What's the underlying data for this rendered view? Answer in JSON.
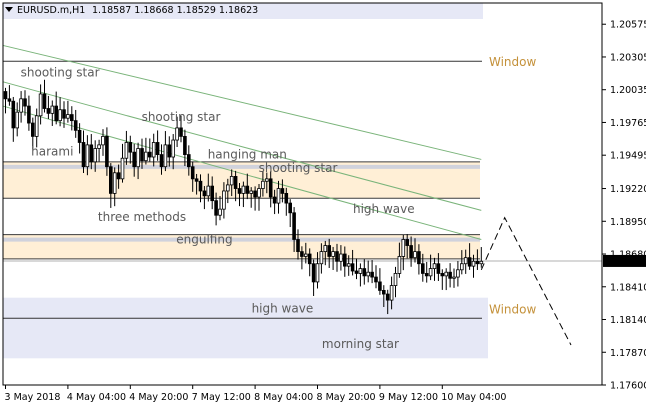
{
  "header": {
    "symbol": "EURUSD.m,H1",
    "ohlc": "1.18587 1.18668 1.18529 1.18623"
  },
  "colors": {
    "up": "#ffffff",
    "down": "#000000",
    "zone_fill": "#ffefd6",
    "window_fill": "#e6e8f6",
    "ma_green": "#7ab47a",
    "price_tag_bg": "#000000",
    "window_text": "#c4913a"
  },
  "chart_data": {
    "type": "candlestick",
    "symbol": "EURUSD.m",
    "timeframe": "H1",
    "ylim": [
      1.176,
      1.2075
    ],
    "y_ticks": [
      "1.20575",
      "1.20305",
      "1.20035",
      "1.19765",
      "1.19495",
      "1.19220",
      "1.18950",
      "1.18680",
      "1.18410",
      "1.18140",
      "1.17870",
      "1.17600"
    ],
    "y_tick_values": [
      1.20575,
      1.20305,
      1.20035,
      1.19765,
      1.19495,
      1.1922,
      1.1895,
      1.1868,
      1.1841,
      1.1814,
      1.1787,
      1.176
    ],
    "x_ticks": [
      "3 May 2018",
      "4 May 04:00",
      "4 May 20:00",
      "7 May 12:00",
      "8 May 04:00",
      "8 May 20:00",
      "9 May 12:00",
      "10 May 04:00"
    ],
    "x_tick_index": [
      0,
      16,
      32,
      48,
      64,
      80,
      96,
      112
    ],
    "current_price": "1.18623",
    "current_price_value": 1.18623,
    "zones": [
      {
        "kind": "resistance",
        "top": 1.1944,
        "bottom": 1.1914
      },
      {
        "kind": "support",
        "top": 1.1884,
        "bottom": 1.1864
      }
    ],
    "windows": [
      {
        "label": "Window",
        "top": 1.2027,
        "bottom": 1.2027,
        "line_only": true
      },
      {
        "label": "Window",
        "top": 1.1832,
        "bottom": 1.1782,
        "line_value": 1.1815
      }
    ],
    "ma_lines": [
      {
        "start": 1.204,
        "end": 1.1946
      },
      {
        "start": 1.201,
        "end": 1.1904
      },
      {
        "start": 1.199,
        "end": 1.188
      }
    ],
    "forecast": [
      {
        "index": 122,
        "value": 1.1855
      },
      {
        "index": 128,
        "value": 1.1898
      },
      {
        "index": 145,
        "value": 1.1793
      }
    ],
    "annotations": [
      {
        "text": "shooting star",
        "index": 14,
        "value": 1.20175
      },
      {
        "text": "harami",
        "index": 12,
        "value": 1.19525
      },
      {
        "text": "shooting star",
        "index": 45,
        "value": 1.1981
      },
      {
        "text": "hanging man",
        "index": 62,
        "value": 1.195
      },
      {
        "text": "shooting star",
        "index": 75,
        "value": 1.1939
      },
      {
        "text": "three methods",
        "index": 35,
        "value": 1.18985
      },
      {
        "text": "engulfing",
        "index": 51,
        "value": 1.188
      },
      {
        "text": "high wave",
        "index": 97,
        "value": 1.1905
      },
      {
        "text": "high wave",
        "index": 71,
        "value": 1.1823
      },
      {
        "text": "morning star",
        "index": 91,
        "value": 1.1794
      }
    ],
    "closes": [
      1.1996,
      1.1994,
      1.1972,
      1.1985,
      1.1996,
      1.199,
      1.1976,
      1.1965,
      1.1982,
      1.2,
      1.1988,
      1.1984,
      1.199,
      1.1978,
      1.1987,
      1.198,
      1.1983,
      1.1978,
      1.197,
      1.196,
      1.194,
      1.1958,
      1.1944,
      1.1955,
      1.1958,
      1.1965,
      1.194,
      1.1918,
      1.1935,
      1.193,
      1.1947,
      1.196,
      1.1952,
      1.194,
      1.1955,
      1.1945,
      1.1952,
      1.1948,
      1.196,
      1.195,
      1.194,
      1.1958,
      1.1948,
      1.1962,
      1.1972,
      1.1965,
      1.195,
      1.194,
      1.193,
      1.1928,
      1.192,
      1.1916,
      1.1924,
      1.1912,
      1.19,
      1.1905,
      1.192,
      1.1925,
      1.1932,
      1.1922,
      1.1918,
      1.1924,
      1.1918,
      1.192,
      1.1915,
      1.1922,
      1.1928,
      1.193,
      1.1915,
      1.191,
      1.1922,
      1.1918,
      1.191,
      1.1902,
      1.188,
      1.187,
      1.1866,
      1.1868,
      1.186,
      1.1845,
      1.186,
      1.187,
      1.1875,
      1.1866,
      1.187,
      1.1862,
      1.1868,
      1.1858,
      1.186,
      1.1854,
      1.1852,
      1.1856,
      1.185,
      1.1853,
      1.1849,
      1.1845,
      1.1838,
      1.1835,
      1.183,
      1.1842,
      1.1852,
      1.1866,
      1.188,
      1.1875,
      1.1865,
      1.187,
      1.186,
      1.1852,
      1.185,
      1.1856,
      1.186,
      1.1852,
      1.185,
      1.1853,
      1.1848,
      1.1849,
      1.1855,
      1.186,
      1.1865,
      1.1858,
      1.1862,
      1.186,
      1.1862
    ]
  }
}
